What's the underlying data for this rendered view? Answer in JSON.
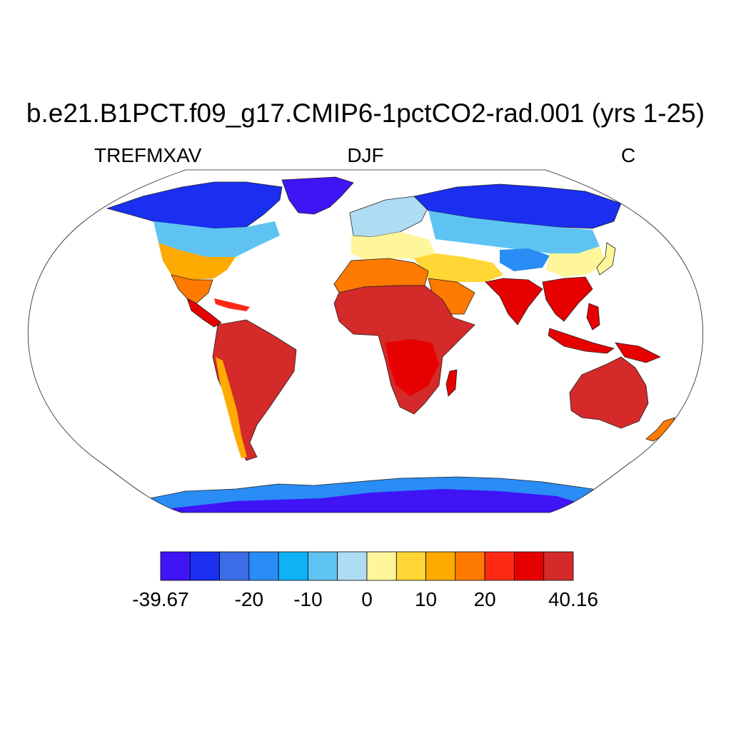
{
  "title": "b.e21.B1PCT.f09_g17.CMIP6-1pctCO2-rad.001 (yrs 1-25)",
  "variable": "TREFMXAV",
  "season": "DJF",
  "units": "C",
  "colorbar": {
    "colors": [
      "#3f14f5",
      "#1a2ff0",
      "#3c6ce6",
      "#2a8cf5",
      "#0fb2f5",
      "#5ec3f2",
      "#aedcf2",
      "#fff59a",
      "#ffd633",
      "#ffaa00",
      "#ff7a00",
      "#ff2a14",
      "#e60000",
      "#d42a2a"
    ],
    "tick_labels": [
      "-39.67",
      "-20",
      "-10",
      "0",
      "10",
      "20",
      "40.16"
    ]
  },
  "map": {
    "projection": "robinson",
    "ocean_color": "#ffffff"
  }
}
